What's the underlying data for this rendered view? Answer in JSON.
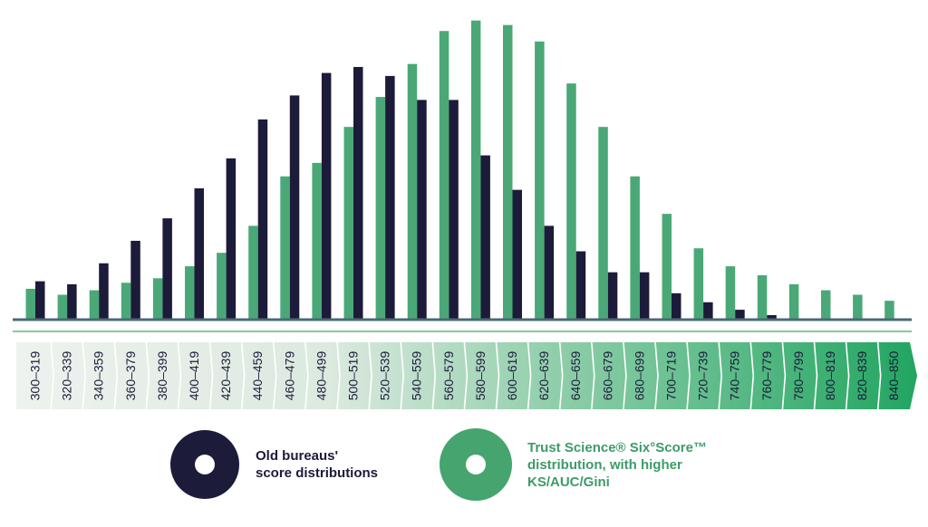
{
  "chart_data": {
    "type": "bar",
    "categories": [
      "300–319",
      "320–339",
      "340–359",
      "360–379",
      "380–399",
      "400–419",
      "420–439",
      "440–459",
      "460–479",
      "480–499",
      "500–519",
      "520–539",
      "540–559",
      "560–579",
      "580–599",
      "600–619",
      "620–639",
      "640–659",
      "660–679",
      "680–699",
      "700–719",
      "720–739",
      "740–759",
      "760–779",
      "780–799",
      "800–819",
      "820–839",
      "840–850"
    ],
    "series": [
      {
        "name": "Trust Science® Six°Score™ distribution, with higher KS/AUC/Gini",
        "color": "#4aa877",
        "values": [
          10,
          8,
          9.5,
          12,
          13.5,
          17.5,
          22,
          31,
          47.5,
          52,
          64,
          74,
          85,
          96,
          99.5,
          98,
          92.5,
          78.5,
          64,
          47.5,
          35,
          23.5,
          17.5,
          14.5,
          11.5,
          9.5,
          8,
          6
        ]
      },
      {
        "name": "Old bureaus' score distributions",
        "color": "#1c1b3a",
        "values": [
          12.5,
          11.5,
          18.5,
          26,
          33.5,
          43.5,
          53.5,
          66.5,
          74.5,
          82,
          84,
          81,
          73,
          73,
          54.5,
          43,
          31,
          22.5,
          15.5,
          15.5,
          8.5,
          5.5,
          3,
          1.2,
          0,
          0,
          0,
          0
        ]
      }
    ],
    "ylim": [
      0,
      100
    ],
    "grid": false,
    "legend_position": "bottom"
  },
  "legend": {
    "old": {
      "line1": "Old bureaus'",
      "line2": "score distributions"
    },
    "new": {
      "line1": "Trust Science® Six°Score™",
      "line2": "distribution, with higher",
      "line3": "KS/AUC/Gini"
    }
  }
}
